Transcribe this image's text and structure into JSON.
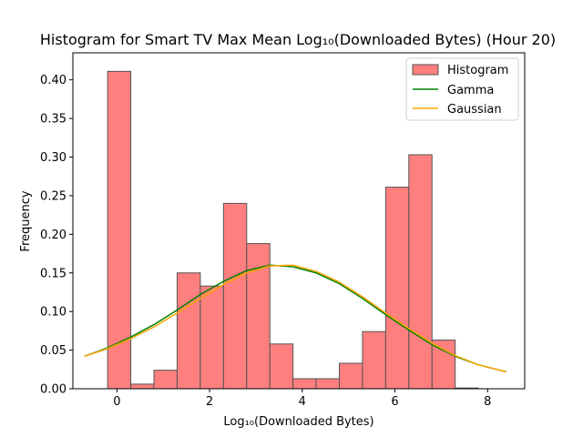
{
  "chart_data": {
    "type": "bar",
    "title": "Histogram for Smart TV Max Mean Log₁₀(Downloaded Bytes) (Hour 20)",
    "xlabel": "Log₁₀(Downloaded Bytes)",
    "ylabel": "Frequency",
    "xlim": [
      -0.95,
      8.8
    ],
    "ylim": [
      0,
      0.435
    ],
    "xticks": [
      0,
      2,
      4,
      6,
      8
    ],
    "xtick_labels": [
      "0",
      "2",
      "4",
      "6",
      "8"
    ],
    "yticks": [
      0.0,
      0.05,
      0.1,
      0.15,
      0.2,
      0.25,
      0.3,
      0.35,
      0.4
    ],
    "ytick_labels": [
      "0.00",
      "0.05",
      "0.10",
      "0.15",
      "0.20",
      "0.25",
      "0.30",
      "0.35",
      "0.40"
    ],
    "grid": false,
    "legend_position": "top-right",
    "histogram": {
      "name": "Histogram",
      "color": "#ff7f7f",
      "edge_color": "#555555",
      "bin_edges": [
        -0.2,
        0.3,
        0.8,
        1.3,
        1.8,
        2.3,
        2.8,
        3.3,
        3.8,
        4.3,
        4.8,
        5.3,
        5.8,
        6.3,
        6.8,
        7.3,
        7.8
      ],
      "values": [
        0.411,
        0.006,
        0.024,
        0.15,
        0.133,
        0.24,
        0.188,
        0.058,
        0.013,
        0.013,
        0.033,
        0.074,
        0.261,
        0.303,
        0.063,
        0.001
      ]
    },
    "series": [
      {
        "name": "Gamma",
        "type": "line",
        "color": "#008000",
        "x": [
          -0.7,
          -0.2,
          0.3,
          0.8,
          1.3,
          1.8,
          2.3,
          2.8,
          3.3,
          3.8,
          4.3,
          4.8,
          5.3,
          5.8,
          6.3,
          6.8,
          7.3,
          7.8,
          8.4
        ],
        "y": [
          0.042,
          0.053,
          0.067,
          0.083,
          0.102,
          0.122,
          0.139,
          0.153,
          0.16,
          0.158,
          0.15,
          0.136,
          0.117,
          0.096,
          0.076,
          0.057,
          0.042,
          0.031,
          0.022
        ]
      },
      {
        "name": "Gaussian",
        "type": "line",
        "color": "#ffa500",
        "x": [
          -0.7,
          -0.2,
          0.3,
          0.8,
          1.3,
          1.8,
          2.3,
          2.8,
          3.3,
          3.8,
          4.3,
          4.8,
          5.3,
          5.8,
          6.3,
          6.8,
          7.3,
          7.8,
          8.4
        ],
        "y": [
          0.042,
          0.052,
          0.065,
          0.08,
          0.098,
          0.117,
          0.135,
          0.15,
          0.159,
          0.16,
          0.152,
          0.138,
          0.119,
          0.098,
          0.078,
          0.059,
          0.043,
          0.031,
          0.022
        ]
      }
    ]
  }
}
